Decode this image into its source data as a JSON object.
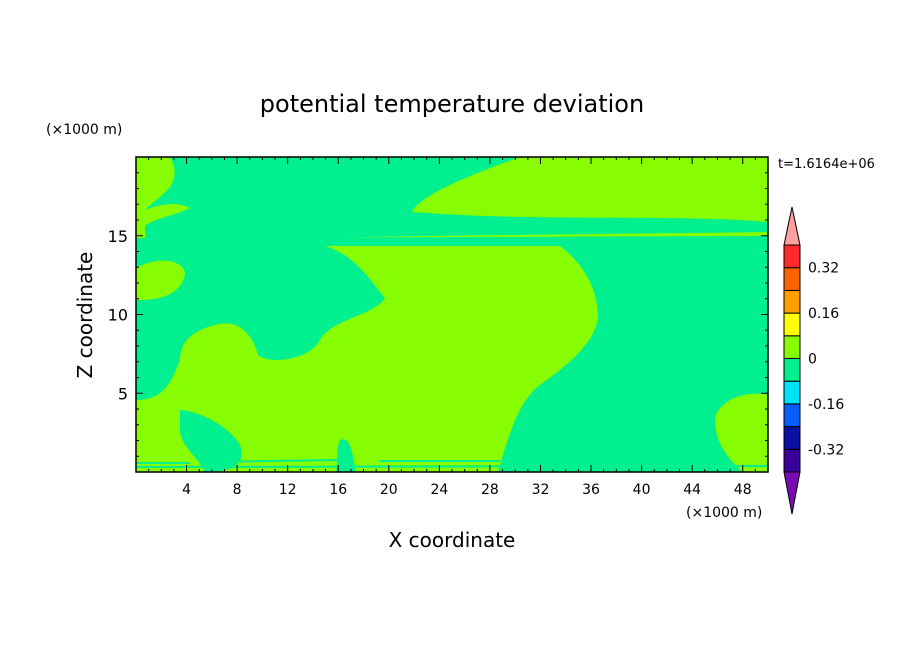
{
  "chart_data": {
    "type": "heatmap",
    "title": "potential temperature deviation",
    "xlabel": "X coordinate",
    "ylabel": "Z coordinate",
    "x_unit": "(×1000 m)",
    "z_unit": "(×1000 m)",
    "time_label": "t=1.6164e+06",
    "xlim": [
      0,
      50
    ],
    "ylim": [
      0,
      20
    ],
    "x_ticks": [
      "4",
      "8",
      "12",
      "16",
      "20",
      "24",
      "28",
      "32",
      "36",
      "40",
      "44",
      "48"
    ],
    "y_ticks": [
      "5",
      "10",
      "15"
    ],
    "colorbar": {
      "labels": [
        "0.32",
        "0.16",
        "0",
        "-0.16",
        "-0.32"
      ],
      "level_colors": [
        "#7a0ab4",
        "#3c009a",
        "#0a10a4",
        "#0a5cfa",
        "#00e2f8",
        "#00f090",
        "#88fc00",
        "#ffff00",
        "#ffa000",
        "#ff6400",
        "#ff2a2a",
        "#ffa0a0"
      ]
    },
    "field_colors": {
      "zero_to_pos": "#88fc00",
      "neg_to_zero": "#00f090"
    }
  }
}
